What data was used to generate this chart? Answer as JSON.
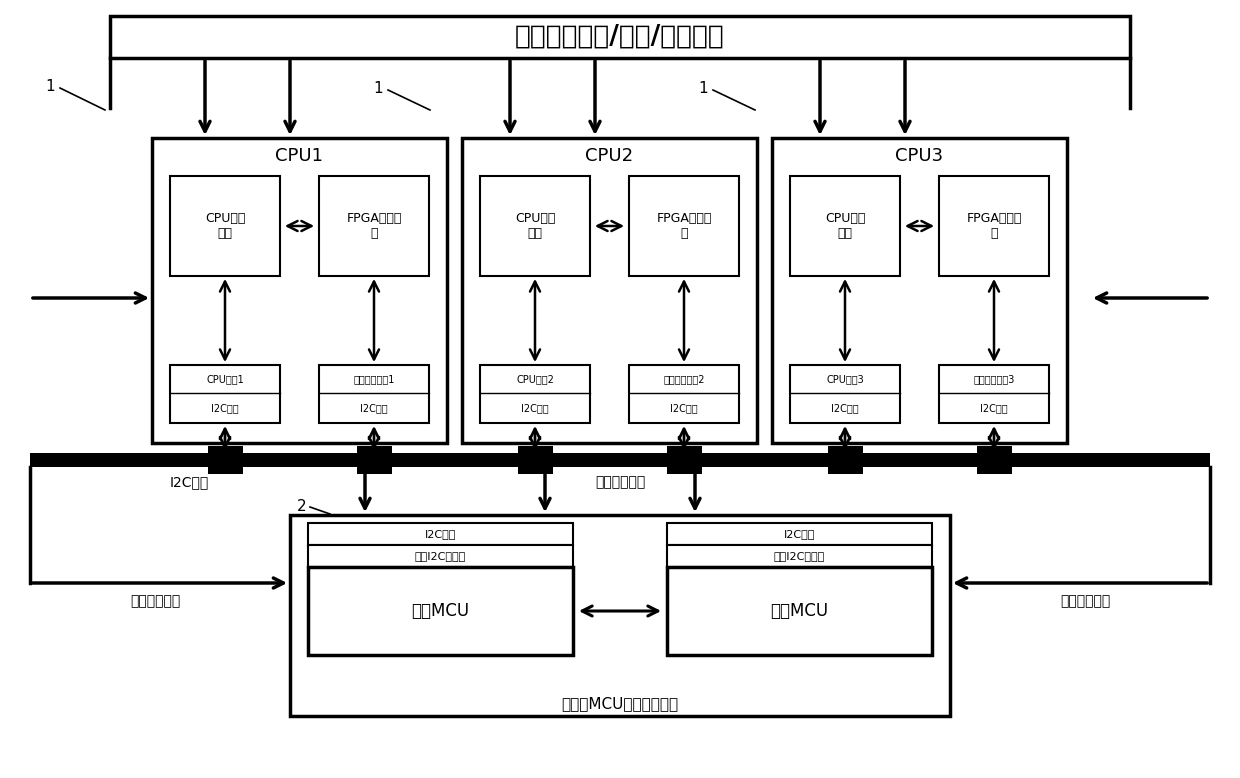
{
  "title": "三机数据交换/同步/表决通道",
  "bg_color": "#ffffff",
  "i2c_bus_label": "I2C总线",
  "clock_feedback_label": "时钟反馈通道",
  "mcu_unit_label": "双冗余MCU时钟配置单元",
  "main_mcu_label": "主份MCU",
  "backup_mcu_label": "备份MCU",
  "main_i2c_ctrl_label": "主份I2C控制器",
  "backup_i2c_ctrl_label": "备份I2C控制器",
  "i2c_interface_label": "I2C接口",
  "cpu_labels": [
    "CPU1",
    "CPU2",
    "CPU3"
  ],
  "cpu_unit_label": "CPU处理\n单元",
  "fpga_unit_label": "FPGA逻辑电\n路",
  "cpu_clk_labels": [
    "CPU时钟1",
    "CPU时钟2",
    "CPU时钟3"
  ],
  "fpga_clk_labels": [
    "逻辑电路时钟1",
    "逻辑电路时钟2",
    "逻辑电路时钟3"
  ]
}
